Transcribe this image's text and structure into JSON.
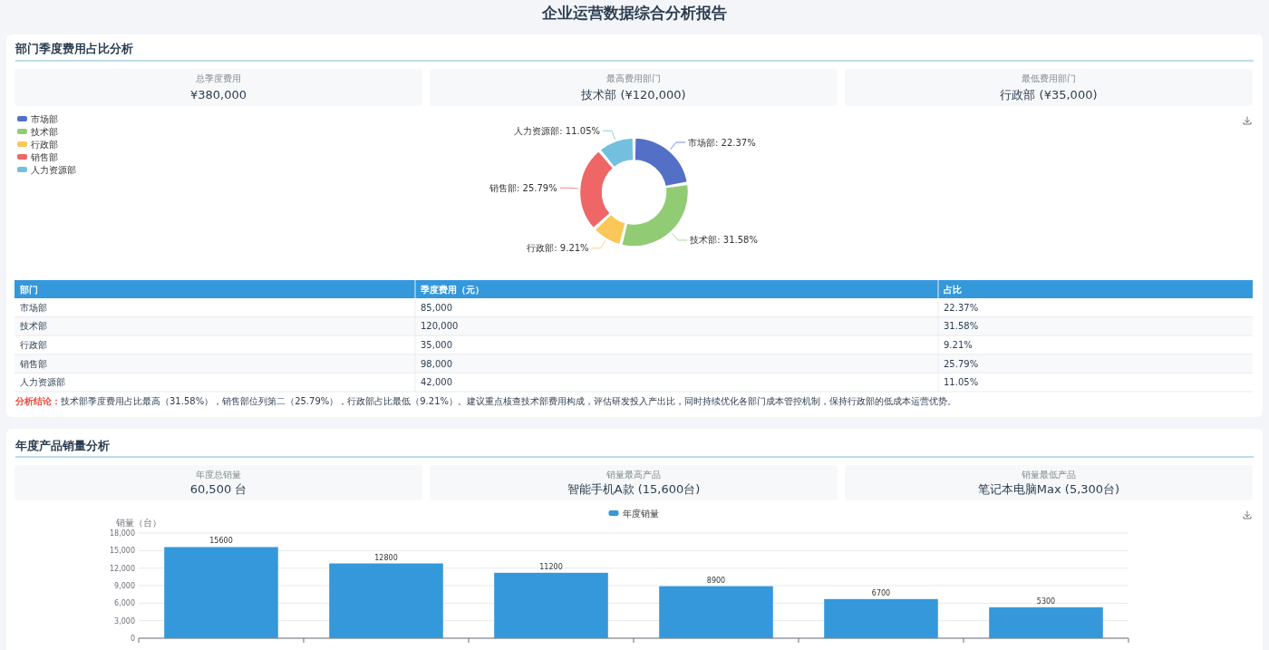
{
  "chart_data": [
    {
      "type": "other",
      "title": "企业运营数据综合分析报告"
    },
    {
      "type": "other",
      "title": "部门季度费用占比分析",
      "annotations": [
        "总季度费用",
        "¥380,000",
        "最高费用部门",
        "技术部 (¥120,000)",
        "最低费用部门",
        "行政部 (¥35,000)"
      ]
    },
    {
      "type": "donut",
      "categories": [
        "市场部",
        "技术部",
        "行政部",
        "销售部",
        "人力资源部"
      ],
      "values": [
        22.37,
        31.58,
        9.21,
        25.79,
        11.05
      ],
      "colors": [
        "#5470c6",
        "#91cc75",
        "#fac858",
        "#ee6666",
        "#73c0de"
      ],
      "value_labels": [
        "市场部: 22.37%",
        "技术部: 31.58%",
        "行政部: 9.21%",
        "销售部: 25.79%",
        "人力资源部: 11.05%"
      ],
      "legend": "top left"
    },
    {
      "type": "other",
      "xlabel": "部门",
      "categories": [
        "市场部",
        "技术部",
        "行政部",
        "销售部",
        "人力资源部"
      ],
      "series": [
        {
          "name": "季度费用（元）",
          "values": [
            85000,
            120000,
            35000,
            98000,
            42000
          ],
          "value_labels": [
            "85,000",
            "120,000",
            "35,000",
            "98,000",
            "42,000"
          ]
        },
        {
          "name": "占比",
          "values": [
            22.37,
            31.58,
            9.21,
            25.79,
            11.05
          ],
          "value_labels": [
            "22.37%",
            "31.58%",
            "9.21%",
            "25.79%",
            "11.05%"
          ]
        }
      ],
      "annotations": [
        "分析结论：",
        "技术部季度费用占比最高（31.58%），销售部位列第二（25.79%），行政部占比最低（9.21%）。建议重点核查技术部费用构成，评估研发投入产出比，同时持续优化各部门成本管控机制，保持行政部的低成本运营优势。"
      ]
    },
    {
      "type": "other",
      "title": "年度产品销量分析",
      "annotations": [
        "年度总销量",
        "60,500 台",
        "销量最高产品",
        "智能手机A款 (15,600台)",
        "销量最低产品",
        "笔记本电脑Max (5,300台)"
      ]
    },
    {
      "type": "bar",
      "categories": [
        null,
        null,
        null,
        null,
        null,
        null
      ],
      "series": [
        {
          "name": "年度销量",
          "color": "#3498db",
          "values": [
            15600,
            12800,
            11200,
            8900,
            6700,
            5300
          ]
        }
      ],
      "ylabel": "销量（台）",
      "ylim": [
        0,
        18000
      ],
      "yticks": [
        0,
        {
          "value": 3000,
          "label": "3,000"
        },
        {
          "value": 6000,
          "label": "6,000"
        },
        {
          "value": 9000,
          "label": "9,000"
        },
        {
          "value": 12000,
          "label": "12,000"
        },
        {
          "value": 15000,
          "label": "15,000"
        },
        {
          "value": 18000,
          "label": "18,000"
        }
      ],
      "grid": "y",
      "legend": "top",
      "data_labels": true
    }
  ]
}
